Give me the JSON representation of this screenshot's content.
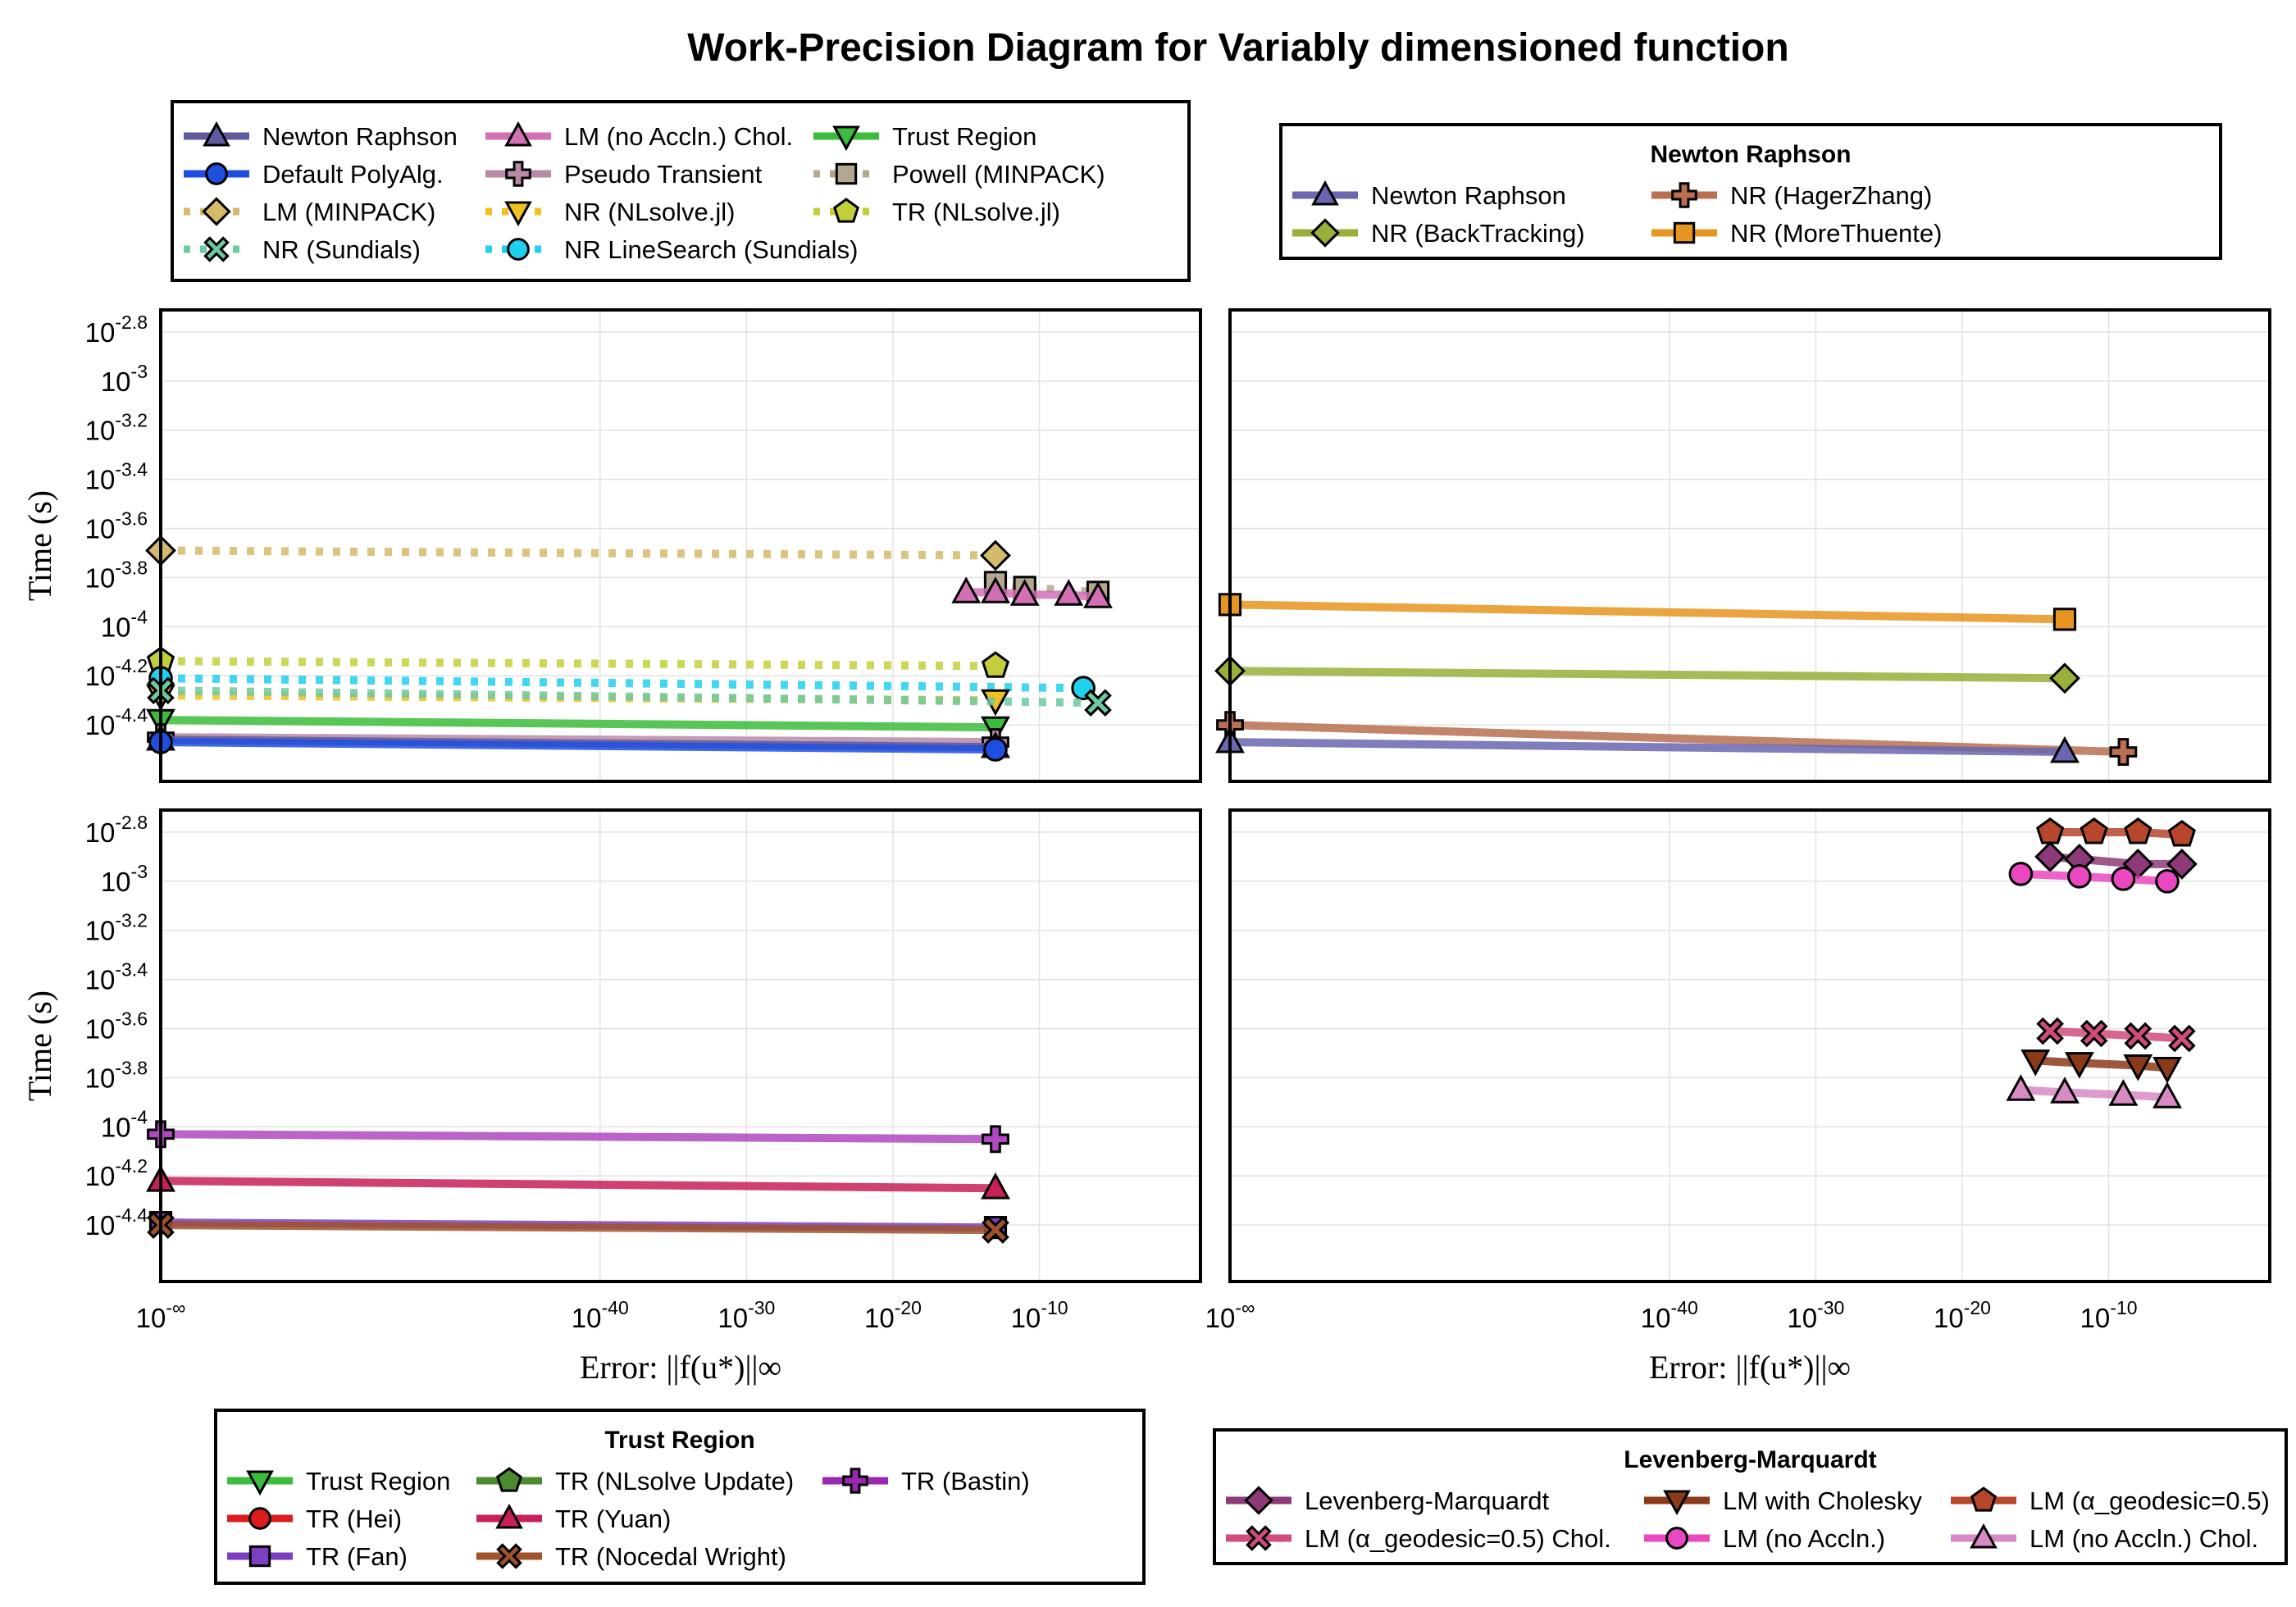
{
  "title": "Work-Precision Diagram for Variably dimensioned function",
  "axes": {
    "ylabel": "Time (s)",
    "xlabel": "Error: ||f(u*)||∞",
    "y_ticks": [
      {
        "value": -2.8,
        "label": "-2.8"
      },
      {
        "value": -3.0,
        "label": "-3"
      },
      {
        "value": -3.2,
        "label": "-3.2"
      },
      {
        "value": -3.4,
        "label": "-3.4"
      },
      {
        "value": -3.6,
        "label": "-3.6"
      },
      {
        "value": -3.8,
        "label": "-3.8"
      },
      {
        "value": -4.0,
        "label": "-4"
      },
      {
        "value": -4.2,
        "label": "-4.2"
      },
      {
        "value": -4.4,
        "label": "-4.4"
      }
    ],
    "x_ticks": [
      {
        "value": "-inf",
        "label": "-∞"
      },
      {
        "value": -40,
        "label": "-40"
      },
      {
        "value": -30,
        "label": "-30"
      },
      {
        "value": -20,
        "label": "-20"
      },
      {
        "value": -10,
        "label": "-10"
      }
    ]
  },
  "legends": {
    "main": {
      "title": "",
      "entries": [
        {
          "label": "Newton Raphson",
          "color": "#5f5a9e",
          "marker": "triangle",
          "style": "solid"
        },
        {
          "label": "Default PolyAlg.",
          "color": "#1f4fe0",
          "marker": "circle",
          "style": "solid"
        },
        {
          "label": "LM (MINPACK)",
          "color": "#d4ba6a",
          "marker": "diamond",
          "style": "dotted"
        },
        {
          "label": "NR (Sundials)",
          "color": "#6cc9a0",
          "marker": "x",
          "style": "dotted"
        },
        {
          "label": "LM (no Accln.) Chol.",
          "color": "#d36fb5",
          "marker": "triangle",
          "style": "solid"
        },
        {
          "label": "Pseudo Transient",
          "color": "#b98aa6",
          "marker": "cross",
          "style": "solid"
        },
        {
          "label": "NR (NLsolve.jl)",
          "color": "#f0c020",
          "marker": "triangle-down",
          "style": "dotted"
        },
        {
          "label": "NR LineSearch (Sundials)",
          "color": "#20d0f0",
          "marker": "circle",
          "style": "dotted"
        },
        {
          "label": "Trust Region",
          "color": "#3bbd3b",
          "marker": "triangle-down",
          "style": "solid"
        },
        {
          "label": "Powell (MINPACK)",
          "color": "#b3a88f",
          "marker": "square",
          "style": "dotted"
        },
        {
          "label": "TR (NLsolve.jl)",
          "color": "#c3cf3a",
          "marker": "pentagon",
          "style": "dotted"
        }
      ]
    },
    "newton": {
      "title": "Newton Raphson",
      "entries": [
        {
          "label": "Newton Raphson",
          "color": "#6a66b0",
          "marker": "triangle",
          "style": "solid"
        },
        {
          "label": "NR (BackTracking)",
          "color": "#98b03a",
          "marker": "diamond",
          "style": "solid"
        },
        {
          "label": "NR (HagerZhang)",
          "color": "#b87050",
          "marker": "cross",
          "style": "solid"
        },
        {
          "label": "NR (MoreThuente)",
          "color": "#e69520",
          "marker": "square",
          "style": "solid"
        }
      ]
    },
    "trust": {
      "title": "Trust Region",
      "entries": [
        {
          "label": "Trust Region",
          "color": "#3bbd3b",
          "marker": "triangle-down",
          "style": "solid"
        },
        {
          "label": "TR (Hei)",
          "color": "#dd1c1c",
          "marker": "circle",
          "style": "solid"
        },
        {
          "label": "TR (Fan)",
          "color": "#7b3fc0",
          "marker": "square",
          "style": "solid"
        },
        {
          "label": "TR (NLsolve Update)",
          "color": "#4b8a2e",
          "marker": "pentagon",
          "style": "solid"
        },
        {
          "label": "TR (Yuan)",
          "color": "#c8205a",
          "marker": "triangle",
          "style": "solid"
        },
        {
          "label": "TR (Nocedal Wright)",
          "color": "#a0522d",
          "marker": "x",
          "style": "solid"
        },
        {
          "label": "TR (Bastin)",
          "color": "#9a28b0",
          "marker": "cross",
          "style": "solid"
        }
      ]
    },
    "lm": {
      "title": "Levenberg-Marquardt",
      "entries": [
        {
          "label": "Levenberg-Marquardt",
          "color": "#8e3a78",
          "marker": "diamond",
          "style": "solid"
        },
        {
          "label": "LM (α_geodesic=0.5) Chol.",
          "color": "#d04c7c",
          "marker": "x",
          "style": "solid"
        },
        {
          "label": "LM with Cholesky",
          "color": "#8b3a1a",
          "marker": "triangle-down",
          "style": "solid"
        },
        {
          "label": "LM (no Accln.)",
          "color": "#ea48c0",
          "marker": "circle",
          "style": "solid"
        },
        {
          "label": "LM (α_geodesic=0.5)",
          "color": "#b8462c",
          "marker": "pentagon",
          "style": "solid"
        },
        {
          "label": "LM (no Accln.) Chol.",
          "color": "#d88ac4",
          "marker": "triangle",
          "style": "solid"
        }
      ]
    }
  },
  "chart_data": [
    {
      "type": "line",
      "panel": "top-left",
      "x_scale": "log10",
      "y_scale": "log10",
      "series": [
        {
          "name": "LM (MINPACK)",
          "color": "#d4ba6a",
          "marker": "diamond",
          "style": "dotted",
          "points": [
            [
              "-inf",
              -3.69
            ],
            [
              -13,
              -3.71
            ]
          ]
        },
        {
          "name": "Powell (MINPACK)",
          "color": "#b3a88f",
          "marker": "square",
          "style": "dotted",
          "points": [
            [
              -13,
              -3.82
            ],
            [
              -11,
              -3.84
            ],
            [
              -6,
              -3.86
            ]
          ]
        },
        {
          "name": "LM (no Accln.) Chol.",
          "color": "#d36fb5",
          "marker": "triangle",
          "style": "solid",
          "points": [
            [
              -15,
              -3.86
            ],
            [
              -13,
              -3.86
            ],
            [
              -11,
              -3.87
            ],
            [
              -8,
              -3.87
            ],
            [
              -6,
              -3.88
            ]
          ]
        },
        {
          "name": "TR (NLsolve.jl)",
          "color": "#c3cf3a",
          "marker": "pentagon",
          "style": "dotted",
          "points": [
            [
              "-inf",
              -4.14
            ],
            [
              -13,
              -4.16
            ]
          ]
        },
        {
          "name": "NR LineSearch (Sundials)",
          "color": "#20d0f0",
          "marker": "circle",
          "style": "dotted",
          "points": [
            [
              "-inf",
              -4.21
            ],
            [
              -7,
              -4.25
            ]
          ]
        },
        {
          "name": "NR (NLsolve.jl)",
          "color": "#f0c020",
          "marker": "triangle-down",
          "style": "dotted",
          "points": [
            [
              "-inf",
              -4.28
            ],
            [
              -13,
              -4.3
            ]
          ]
        },
        {
          "name": "NR (Sundials)",
          "color": "#6cc9a0",
          "marker": "x",
          "style": "dotted",
          "points": [
            [
              "-inf",
              -4.26
            ],
            [
              -6,
              -4.31
            ]
          ]
        },
        {
          "name": "Trust Region",
          "color": "#3bbd3b",
          "marker": "triangle-down",
          "style": "solid",
          "points": [
            [
              "-inf",
              -4.38
            ],
            [
              -13,
              -4.41
            ]
          ]
        },
        {
          "name": "Pseudo Transient",
          "color": "#b98aa6",
          "marker": "cross",
          "style": "solid",
          "points": [
            [
              "-inf",
              -4.45
            ],
            [
              -13,
              -4.47
            ]
          ]
        },
        {
          "name": "Newton Raphson",
          "color": "#5f5a9e",
          "marker": "triangle",
          "style": "solid",
          "points": [
            [
              "-inf",
              -4.46
            ],
            [
              -13,
              -4.49
            ]
          ]
        },
        {
          "name": "Default PolyAlg.",
          "color": "#1f4fe0",
          "marker": "circle",
          "style": "solid",
          "points": [
            [
              "-inf",
              -4.47
            ],
            [
              -13,
              -4.5
            ]
          ]
        }
      ]
    },
    {
      "type": "line",
      "panel": "top-right",
      "x_scale": "log10",
      "y_scale": "log10",
      "series": [
        {
          "name": "NR (MoreThuente)",
          "color": "#e69520",
          "marker": "square",
          "style": "solid",
          "points": [
            [
              "-inf",
              -3.91
            ],
            [
              -13,
              -3.97
            ]
          ]
        },
        {
          "name": "NR (BackTracking)",
          "color": "#98b03a",
          "marker": "diamond",
          "style": "solid",
          "points": [
            [
              "-inf",
              -4.18
            ],
            [
              -13,
              -4.21
            ]
          ]
        },
        {
          "name": "NR (HagerZhang)",
          "color": "#b87050",
          "marker": "cross",
          "style": "solid",
          "points": [
            [
              "-inf",
              -4.4
            ],
            [
              -9,
              -4.51
            ]
          ]
        },
        {
          "name": "Newton Raphson",
          "color": "#6a66b0",
          "marker": "triangle",
          "style": "solid",
          "points": [
            [
              "-inf",
              -4.47
            ],
            [
              -13,
              -4.51
            ]
          ]
        }
      ]
    },
    {
      "type": "line",
      "panel": "bottom-left",
      "x_scale": "log10",
      "y_scale": "log10",
      "series": [
        {
          "name": "TR (Bastin)",
          "color": "#b048c0",
          "marker": "cross",
          "style": "solid",
          "points": [
            [
              "-inf",
              -4.03
            ],
            [
              -13,
              -4.05
            ]
          ]
        },
        {
          "name": "TR (Yuan)",
          "color": "#c8205a",
          "marker": "triangle",
          "style": "solid",
          "points": [
            [
              "-inf",
              -4.22
            ],
            [
              -13,
              -4.25
            ]
          ]
        },
        {
          "name": "TR (Fan)",
          "color": "#7b3fc0",
          "marker": "square",
          "style": "solid",
          "points": [
            [
              "-inf",
              -4.39
            ],
            [
              -13,
              -4.41
            ]
          ]
        },
        {
          "name": "TR (Nocedal Wright)",
          "color": "#a0522d",
          "marker": "x",
          "style": "solid",
          "points": [
            [
              "-inf",
              -4.4
            ],
            [
              -13,
              -4.42
            ]
          ]
        }
      ]
    },
    {
      "type": "line",
      "panel": "bottom-right",
      "x_scale": "log10",
      "y_scale": "log10",
      "series": [
        {
          "name": "LM (α_geodesic=0.5)",
          "color": "#b8462c",
          "marker": "pentagon",
          "style": "solid",
          "points": [
            [
              -14,
              -2.8
            ],
            [
              -11,
              -2.8
            ],
            [
              -8,
              -2.8
            ],
            [
              -5,
              -2.81
            ]
          ]
        },
        {
          "name": "Levenberg-Marquardt",
          "color": "#8e3a78",
          "marker": "diamond",
          "style": "solid",
          "points": [
            [
              -14,
              -2.9
            ],
            [
              -12,
              -2.91
            ],
            [
              -8,
              -2.93
            ],
            [
              -5,
              -2.93
            ]
          ]
        },
        {
          "name": "LM (no Accln.)",
          "color": "#ea48c0",
          "marker": "circle",
          "style": "solid",
          "points": [
            [
              -16,
              -2.97
            ],
            [
              -12,
              -2.98
            ],
            [
              -9,
              -2.99
            ],
            [
              -6,
              -3.0
            ]
          ]
        },
        {
          "name": "LM (α_geodesic=0.5) Chol.",
          "color": "#d04c7c",
          "marker": "x",
          "style": "solid",
          "points": [
            [
              -14,
              -3.61
            ],
            [
              -11,
              -3.62
            ],
            [
              -8,
              -3.63
            ],
            [
              -5,
              -3.64
            ]
          ]
        },
        {
          "name": "LM with Cholesky",
          "color": "#8b3a1a",
          "marker": "triangle-down",
          "style": "solid",
          "points": [
            [
              -15,
              -3.73
            ],
            [
              -12,
              -3.74
            ],
            [
              -8,
              -3.75
            ],
            [
              -6,
              -3.76
            ]
          ]
        },
        {
          "name": "LM (no Accln.) Chol.",
          "color": "#d88ac4",
          "marker": "triangle",
          "style": "solid",
          "points": [
            [
              -16,
              -3.85
            ],
            [
              -13,
              -3.86
            ],
            [
              -9,
              -3.87
            ],
            [
              -6,
              -3.88
            ]
          ]
        }
      ]
    }
  ]
}
